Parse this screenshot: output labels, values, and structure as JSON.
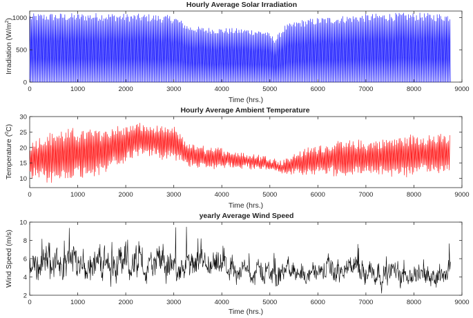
{
  "chart_data": [
    {
      "type": "line",
      "title": "Hourly Average Solar Irradiation",
      "xlabel": "Time (hrs.)",
      "ylabel_main": "Irradiation (W/m",
      "ylabel_sup": "2",
      "ylabel_end": ")",
      "xlim": [
        0,
        9000
      ],
      "ylim": [
        0,
        1100
      ],
      "xticks": [
        0,
        1000,
        2000,
        3000,
        4000,
        5000,
        6000,
        7000,
        8000,
        9000
      ],
      "yticks": [
        0,
        500,
        1000
      ],
      "color": "#0000ff",
      "grid": false,
      "series": [
        {
          "style": "daily-oscillation",
          "hours": 8760,
          "daily_min": 0,
          "daily_peak_envelope": {
            "x": [
              0,
              500,
              1000,
              1500,
              2000,
              2500,
              3000,
              3300,
              3600,
              4000,
              4500,
              4900,
              5100,
              5300,
              5600,
              6000,
              6500,
              7000,
              7500,
              8000,
              8500,
              8760
            ],
            "y": [
              1060,
              1070,
              1065,
              1075,
              1060,
              1055,
              1030,
              880,
              850,
              840,
              830,
              800,
              680,
              880,
              960,
              1000,
              1030,
              1055,
              1070,
              1075,
              1065,
              1060
            ]
          }
        }
      ]
    },
    {
      "type": "line",
      "title": "Hourly Average Ambient Temperature",
      "xlabel": "Time (hrs.)",
      "ylabel_main": "Temperature (",
      "ylabel_sup": "0",
      "ylabel_end": "C)",
      "xlim": [
        0,
        9000
      ],
      "ylim": [
        7,
        30
      ],
      "xticks": [
        0,
        1000,
        2000,
        3000,
        4000,
        5000,
        6000,
        7000,
        8000,
        9000
      ],
      "yticks": [
        10,
        15,
        20,
        25,
        30
      ],
      "color": "#ff0000",
      "grid": false,
      "series": [
        {
          "style": "daily-oscillation",
          "hours": 8760,
          "daily_mean": {
            "x": [
              0,
              500,
              1000,
              1500,
              2000,
              2300,
              2700,
              3000,
              3300,
              3600,
              4000,
              4500,
              5000,
              5200,
              5600,
              6000,
              6500,
              7000,
              7500,
              8000,
              8500,
              8760
            ],
            "y": [
              16,
              17,
              18,
              19,
              21,
              23,
              21.5,
              21.5,
              17.5,
              17,
              16.5,
              15.5,
              15,
              13.5,
              15,
              16,
              16.5,
              16.5,
              17,
              17.5,
              18,
              18
            ]
          },
          "daily_half_range": {
            "x": [
              0,
              500,
              1000,
              1500,
              2000,
              2300,
              2700,
              3000,
              3300,
              3600,
              4000,
              4500,
              5000,
              5200,
              5600,
              6000,
              6500,
              7000,
              7500,
              8000,
              8500,
              8760
            ],
            "y": [
              5,
              7,
              6.5,
              6,
              5,
              4,
              4,
              4,
              3,
              2.5,
              2.5,
              2,
              1.5,
              1.5,
              3,
              4,
              4.5,
              4.5,
              5,
              5.5,
              5,
              5
            ]
          }
        }
      ]
    },
    {
      "type": "line",
      "title": "yearly  Average Wind Speed",
      "xlabel": "Time (hrs.)",
      "ylabel_main": "Wind Speed (m/s)",
      "ylabel_sup": "",
      "ylabel_end": "",
      "xlim": [
        0,
        9000
      ],
      "ylim": [
        2,
        10
      ],
      "xticks": [
        0,
        1000,
        2000,
        3000,
        4000,
        5000,
        6000,
        7000,
        8000,
        9000
      ],
      "yticks": [
        2,
        4,
        6,
        8,
        10
      ],
      "color": "#000000",
      "grid": false,
      "series": [
        {
          "style": "noisy",
          "hours": 8760,
          "mean_level": {
            "x": [
              0,
              500,
              1000,
              1500,
              2000,
              2500,
              3000,
              3500,
              4000,
              4500,
              5000,
              5500,
              6000,
              6500,
              7000,
              7500,
              8000,
              8500,
              8760
            ],
            "y": [
              5.2,
              5.6,
              5.7,
              5.6,
              5.5,
              5.2,
              5.3,
              4.8,
              4.8,
              4.6,
              4.5,
              4.5,
              4.6,
              4.6,
              4.8,
              4.5,
              4.4,
              4.4,
              5.0
            ]
          },
          "spread": {
            "x": [
              0,
              1000,
              2000,
              2500,
              3000,
              3500,
              4000,
              5000,
              6000,
              7000,
              8000,
              8760
            ],
            "y": [
              1.3,
              1.6,
              1.6,
              1.5,
              1.4,
              1.2,
              1.1,
              1.0,
              1.0,
              1.1,
              0.9,
              1.1
            ]
          }
        }
      ]
    }
  ]
}
